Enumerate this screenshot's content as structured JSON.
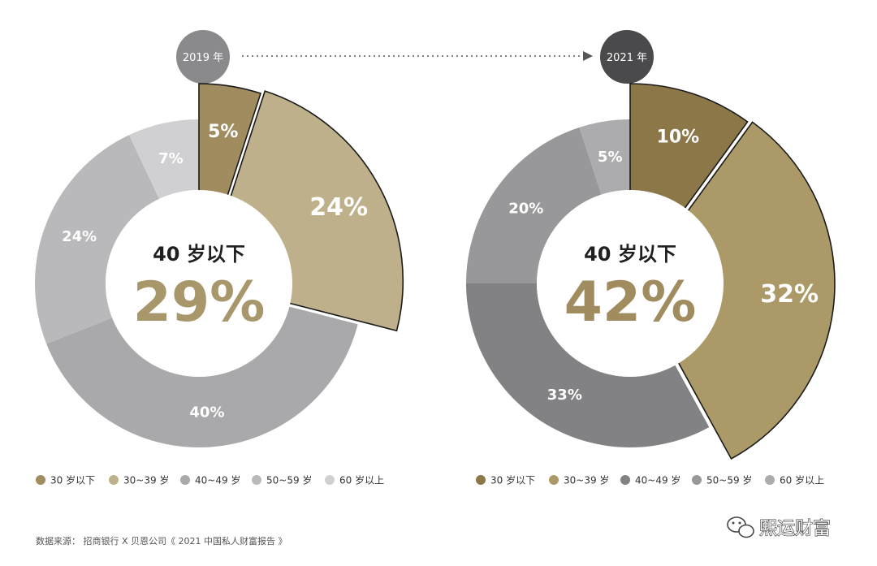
{
  "timeline": {
    "from": "2019 年",
    "to": "2021 年"
  },
  "chart_data": [
    {
      "type": "pie",
      "center_title": "40 岁以下",
      "center_value": "29%",
      "categories": [
        "30 岁以下",
        "30~39 岁",
        "40~49 岁",
        "50~59 岁",
        "60 岁以上"
      ],
      "values": [
        5,
        24,
        40,
        24,
        7
      ],
      "value_labels": [
        "5%",
        "24%",
        "40%",
        "24%",
        "7%"
      ],
      "colors": [
        "#a08c5e",
        "#bdb08a",
        "#a9a9ab",
        "#b9b9bb",
        "#d0d0d2"
      ],
      "highlight": [
        "30 岁以下",
        "30~39 岁"
      ],
      "center_color": "#a8976b",
      "year_badge_color": "#8a8a8c",
      "legend_position": "bottom"
    },
    {
      "type": "pie",
      "center_title": "40 岁以下",
      "center_value": "42%",
      "categories": [
        "30 岁以下",
        "30~39 岁",
        "40~49 岁",
        "50~59 岁",
        "60 岁以上"
      ],
      "values": [
        10,
        32,
        33,
        20,
        5
      ],
      "value_labels": [
        "10%",
        "32%",
        "33%",
        "20%",
        "5%"
      ],
      "colors": [
        "#8b7747",
        "#ab9a68",
        "#828284",
        "#98989a",
        "#acacae"
      ],
      "highlight": [
        "30 岁以下",
        "30~39 岁"
      ],
      "center_color": "#a08c5e",
      "year_badge_color": "#4a4a4c",
      "legend_position": "bottom"
    }
  ],
  "source": "数据来源： 招商银行 X 贝恩公司《 2021 中国私人财富报告 》",
  "watermark": "熙运财富"
}
